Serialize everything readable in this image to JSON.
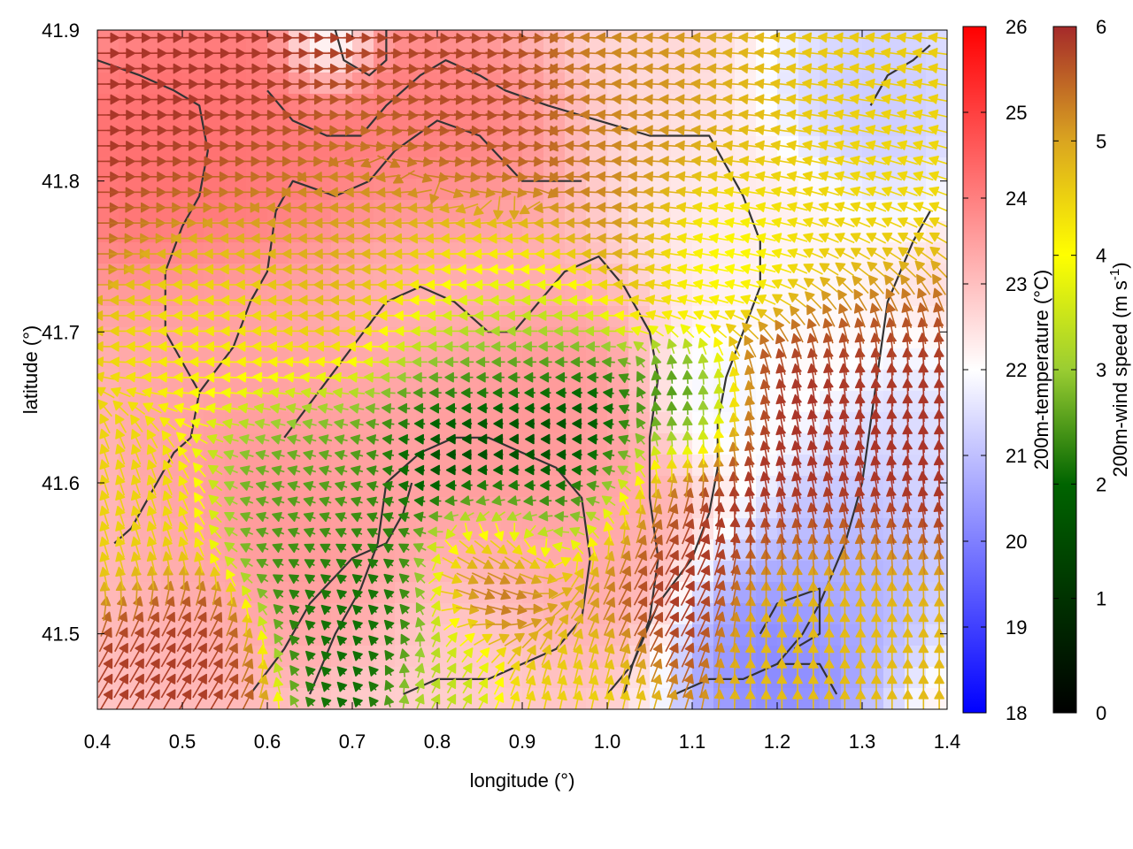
{
  "chart_data": {
    "type": "heatmap",
    "xlabel": "longitude (°)",
    "ylabel": "latitude (°)",
    "xlim": [
      0.4,
      1.4
    ],
    "ylim": [
      41.45,
      41.9
    ],
    "xticks": [
      0.4,
      0.5,
      0.6,
      0.7,
      0.8,
      0.9,
      1.0,
      1.1,
      1.2,
      1.3,
      1.4
    ],
    "xtick_labels": [
      "0.4",
      "0.5",
      "0.6",
      "0.7",
      "0.8",
      "0.9",
      "1.0",
      "1.1",
      "1.2",
      "1.3",
      "1.4"
    ],
    "yticks": [
      41.5,
      41.6,
      41.7,
      41.8,
      41.9
    ],
    "ytick_labels": [
      "41.5",
      "41.6",
      "41.7",
      "41.8",
      "41.9"
    ],
    "grid": false,
    "colorbars": [
      {
        "label": "200m-temperature (°C)",
        "range": [
          18,
          26
        ],
        "ticks": [
          "18",
          "19",
          "20",
          "21",
          "22",
          "23",
          "24",
          "25",
          "26"
        ],
        "colors": [
          "#0000ff",
          "#ffffff",
          "#ff0000"
        ]
      },
      {
        "label_main": "200m-wind speed (m s",
        "label_sup": "-1",
        "label_end": ")",
        "range": [
          0,
          6
        ],
        "ticks": [
          "0",
          "1",
          "2",
          "3",
          "4",
          "5",
          "6"
        ],
        "colors": [
          "#000000",
          "#006400",
          "#9acd32",
          "#ffff00",
          "#daa520",
          "#a52a2a"
        ]
      }
    ],
    "temperature_blobs": [
      {
        "x": 0.47,
        "y": 41.82,
        "t": 24.5,
        "r": 0.12
      },
      {
        "x": 0.62,
        "y": 41.84,
        "t": 24.3,
        "r": 0.12
      },
      {
        "x": 0.8,
        "y": 41.83,
        "t": 24.2,
        "r": 0.1
      },
      {
        "x": 0.55,
        "y": 41.68,
        "t": 23.5,
        "r": 0.12
      },
      {
        "x": 0.6,
        "y": 41.58,
        "t": 23.8,
        "r": 0.12
      },
      {
        "x": 0.9,
        "y": 41.64,
        "t": 23.8,
        "r": 0.12
      },
      {
        "x": 0.75,
        "y": 41.62,
        "t": 23.5,
        "r": 0.12
      },
      {
        "x": 0.95,
        "y": 41.55,
        "t": 23.4,
        "r": 0.1
      },
      {
        "x": 0.8,
        "y": 41.73,
        "t": 23.2,
        "r": 0.1
      },
      {
        "x": 0.5,
        "y": 41.52,
        "t": 23.2,
        "r": 0.1
      },
      {
        "x": 0.85,
        "y": 41.5,
        "t": 22.8,
        "r": 0.08
      },
      {
        "x": 1.2,
        "y": 41.48,
        "t": 19.8,
        "r": 0.09
      },
      {
        "x": 1.3,
        "y": 41.55,
        "t": 20.6,
        "r": 0.09
      },
      {
        "x": 1.35,
        "y": 41.62,
        "t": 21.3,
        "r": 0.08
      },
      {
        "x": 1.32,
        "y": 41.86,
        "t": 21.0,
        "r": 0.09
      },
      {
        "x": 0.67,
        "y": 41.89,
        "t": 20.8,
        "r": 0.04
      },
      {
        "x": 1.13,
        "y": 41.66,
        "t": 21.7,
        "r": 0.06
      },
      {
        "x": 1.15,
        "y": 41.77,
        "t": 22.3,
        "r": 0.08
      },
      {
        "x": 1.22,
        "y": 41.72,
        "t": 22.0,
        "r": 0.08
      }
    ],
    "wind_regimes": [
      {
        "x": 0.55,
        "y": 41.84,
        "u": 1,
        "v": 0,
        "s": 5.9,
        "r": 0.16
      },
      {
        "x": 0.85,
        "y": 41.84,
        "u": 1,
        "v": -0.05,
        "s": 5.8,
        "r": 0.12
      },
      {
        "x": 1.05,
        "y": 41.85,
        "u": -1,
        "v": 0.05,
        "s": 5.0,
        "r": 0.13
      },
      {
        "x": 1.25,
        "y": 41.85,
        "u": -1,
        "v": 0.1,
        "s": 4.3,
        "r": 0.12
      },
      {
        "x": 1.3,
        "y": 41.78,
        "u": -0.9,
        "v": 0.4,
        "s": 4.0,
        "r": 0.1
      },
      {
        "x": 0.7,
        "y": 41.76,
        "u": -1,
        "v": 0,
        "s": 4.6,
        "r": 0.12
      },
      {
        "x": 0.85,
        "y": 41.72,
        "u": -1,
        "v": 0,
        "s": 3.2,
        "r": 0.1
      },
      {
        "x": 0.55,
        "y": 41.72,
        "u": -1,
        "v": 0,
        "s": 3.6,
        "r": 0.1
      },
      {
        "x": 0.85,
        "y": 41.64,
        "u": -1,
        "v": 0,
        "s": 0.6,
        "r": 0.1
      },
      {
        "x": 0.95,
        "y": 41.6,
        "u": -1,
        "v": 0,
        "s": 0.9,
        "r": 0.08
      },
      {
        "x": 0.65,
        "y": 41.6,
        "u": -1,
        "v": 0.3,
        "s": 1.9,
        "r": 0.09
      },
      {
        "x": 0.7,
        "y": 41.52,
        "u": -0.6,
        "v": 0.6,
        "s": 1.3,
        "r": 0.08
      },
      {
        "x": 0.45,
        "y": 41.58,
        "u": -0.3,
        "v": 0.95,
        "s": 4.2,
        "r": 0.07
      },
      {
        "x": 0.5,
        "y": 41.48,
        "u": 0.5,
        "v": 0.85,
        "s": 5.8,
        "r": 0.07
      },
      {
        "x": 0.88,
        "y": 41.54,
        "u": 0.9,
        "v": -0.4,
        "s": 5.7,
        "r": 0.07
      },
      {
        "x": 0.95,
        "y": 41.47,
        "u": 0.2,
        "v": 0.98,
        "s": 4.2,
        "r": 0.07
      },
      {
        "x": 0.82,
        "y": 41.47,
        "u": 0.5,
        "v": 0.85,
        "s": 2.8,
        "r": 0.05
      },
      {
        "x": 1.1,
        "y": 41.65,
        "u": 0,
        "v": 1,
        "s": 1.4,
        "r": 0.05
      },
      {
        "x": 1.05,
        "y": 41.55,
        "u": 0.5,
        "v": 0.85,
        "s": 5.9,
        "r": 0.08
      },
      {
        "x": 1.22,
        "y": 41.62,
        "u": -0.2,
        "v": 0.98,
        "s": 5.9,
        "r": 0.1
      },
      {
        "x": 1.33,
        "y": 41.68,
        "u": 0,
        "v": 1,
        "s": 5.9,
        "r": 0.09
      },
      {
        "x": 1.25,
        "y": 41.5,
        "u": 0,
        "v": 1,
        "s": 4.5,
        "r": 0.08
      },
      {
        "x": 1.15,
        "y": 41.76,
        "u": -1,
        "v": 0.2,
        "s": 3.4,
        "r": 0.07
      }
    ],
    "coastline_polylines": [
      [
        [
          0.42,
          41.56
        ],
        [
          0.44,
          41.57
        ],
        [
          0.47,
          41.6
        ],
        [
          0.49,
          41.62
        ],
        [
          0.51,
          41.63
        ],
        [
          0.52,
          41.66
        ],
        [
          0.5,
          41.68
        ],
        [
          0.48,
          41.7
        ],
        [
          0.48,
          41.74
        ],
        [
          0.5,
          41.77
        ],
        [
          0.52,
          41.79
        ],
        [
          0.53,
          41.82
        ],
        [
          0.52,
          41.85
        ],
        [
          0.49,
          41.86
        ],
        [
          0.45,
          41.87
        ],
        [
          0.4,
          41.88
        ]
      ],
      [
        [
          0.52,
          41.66
        ],
        [
          0.56,
          41.69
        ],
        [
          0.58,
          41.72
        ],
        [
          0.6,
          41.74
        ],
        [
          0.61,
          41.78
        ],
        [
          0.63,
          41.8
        ],
        [
          0.68,
          41.79
        ],
        [
          0.72,
          41.8
        ],
        [
          0.75,
          41.82
        ],
        [
          0.8,
          41.84
        ],
        [
          0.85,
          41.83
        ],
        [
          0.9,
          41.8
        ],
        [
          0.97,
          41.8
        ]
      ],
      [
        [
          0.6,
          41.86
        ],
        [
          0.63,
          41.84
        ],
        [
          0.67,
          41.83
        ],
        [
          0.71,
          41.83
        ],
        [
          0.74,
          41.85
        ],
        [
          0.78,
          41.87
        ],
        [
          0.81,
          41.88
        ],
        [
          0.85,
          41.87
        ],
        [
          0.88,
          41.86
        ],
        [
          0.93,
          41.85
        ],
        [
          0.99,
          41.84
        ],
        [
          1.05,
          41.83
        ],
        [
          1.12,
          41.83
        ],
        [
          1.14,
          41.81
        ],
        [
          1.16,
          41.79
        ],
        [
          1.18,
          41.76
        ],
        [
          1.18,
          41.73
        ],
        [
          1.16,
          41.7
        ],
        [
          1.14,
          41.67
        ],
        [
          1.13,
          41.64
        ],
        [
          1.13,
          41.61
        ],
        [
          1.12,
          41.58
        ],
        [
          1.1,
          41.55
        ],
        [
          1.06,
          41.52
        ],
        [
          1.03,
          41.48
        ],
        [
          1.02,
          41.46
        ]
      ],
      [
        [
          0.62,
          41.63
        ],
        [
          0.66,
          41.66
        ],
        [
          0.7,
          41.69
        ],
        [
          0.74,
          41.72
        ],
        [
          0.78,
          41.73
        ],
        [
          0.82,
          41.72
        ],
        [
          0.86,
          41.7
        ],
        [
          0.89,
          41.7
        ],
        [
          0.92,
          41.72
        ],
        [
          0.95,
          41.74
        ],
        [
          0.99,
          41.75
        ],
        [
          1.02,
          41.73
        ],
        [
          1.05,
          41.7
        ],
        [
          1.06,
          41.67
        ],
        [
          1.05,
          41.63
        ],
        [
          1.05,
          41.59
        ],
        [
          1.06,
          41.55
        ],
        [
          1.05,
          41.51
        ],
        [
          1.03,
          41.48
        ],
        [
          1.0,
          41.46
        ]
      ],
      [
        [
          0.65,
          41.46
        ],
        [
          0.68,
          41.5
        ],
        [
          0.71,
          41.53
        ],
        [
          0.73,
          41.56
        ],
        [
          0.74,
          41.6
        ],
        [
          0.78,
          41.62
        ],
        [
          0.82,
          41.63
        ],
        [
          0.86,
          41.63
        ],
        [
          0.9,
          41.62
        ],
        [
          0.94,
          41.61
        ],
        [
          0.97,
          41.59
        ],
        [
          0.98,
          41.55
        ],
        [
          0.97,
          41.51
        ],
        [
          0.94,
          41.49
        ],
        [
          0.9,
          41.48
        ],
        [
          0.86,
          41.47
        ],
        [
          0.8,
          41.47
        ],
        [
          0.76,
          41.46
        ]
      ],
      [
        [
          1.2,
          41.48
        ],
        [
          1.23,
          41.5
        ],
        [
          1.25,
          41.52
        ],
        [
          1.28,
          41.56
        ],
        [
          1.3,
          41.6
        ],
        [
          1.31,
          41.64
        ],
        [
          1.32,
          41.68
        ],
        [
          1.33,
          41.72
        ],
        [
          1.36,
          41.76
        ],
        [
          1.38,
          41.78
        ]
      ],
      [
        [
          0.58,
          41.46
        ],
        [
          0.62,
          41.49
        ],
        [
          0.65,
          41.52
        ],
        [
          0.7,
          41.55
        ],
        [
          0.74,
          41.56
        ],
        [
          0.76,
          41.58
        ],
        [
          0.77,
          41.6
        ]
      ],
      [
        [
          1.08,
          41.46
        ],
        [
          1.12,
          41.47
        ],
        [
          1.16,
          41.47
        ],
        [
          1.2,
          41.48
        ],
        [
          1.25,
          41.48
        ],
        [
          1.27,
          41.46
        ]
      ],
      [
        [
          1.31,
          41.85
        ],
        [
          1.33,
          41.87
        ],
        [
          1.36,
          41.88
        ],
        [
          1.38,
          41.89
        ]
      ],
      [
        [
          0.68,
          41.9
        ],
        [
          0.69,
          41.88
        ],
        [
          0.72,
          41.87
        ],
        [
          0.74,
          41.88
        ],
        [
          0.74,
          41.9
        ]
      ],
      [
        [
          1.18,
          41.5
        ],
        [
          1.2,
          41.52
        ],
        [
          1.25,
          41.53
        ],
        [
          1.25,
          41.5
        ],
        [
          1.22,
          41.49
        ]
      ]
    ]
  }
}
